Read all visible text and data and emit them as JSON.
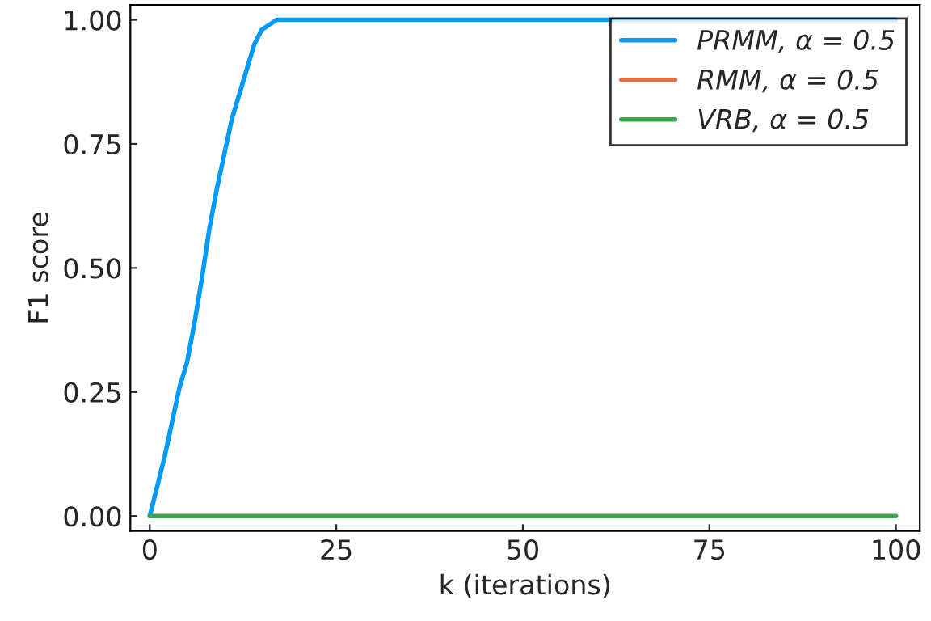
{
  "chart_data": {
    "type": "line",
    "xlabel": "k (iterations)",
    "ylabel": "F1 score",
    "x": [
      0,
      1,
      2,
      3,
      4,
      5,
      6,
      7,
      8,
      9,
      10,
      11,
      12,
      13,
      14,
      15,
      16,
      17,
      20,
      100
    ],
    "series": [
      {
        "name": "PRMM, α = 0.5",
        "color": "#009af9",
        "values": [
          0,
          0.06,
          0.12,
          0.19,
          0.26,
          0.31,
          0.39,
          0.48,
          0.58,
          0.66,
          0.73,
          0.8,
          0.85,
          0.9,
          0.95,
          0.98,
          0.99,
          1.0,
          1.0,
          1.0
        ]
      },
      {
        "name": "RMM, α = 0.5",
        "color": "#e26f46",
        "values": [
          null,
          null,
          null,
          null,
          null,
          null,
          null,
          null,
          null,
          null,
          null,
          null,
          null,
          null,
          null,
          null,
          null,
          null,
          null,
          null
        ]
      },
      {
        "name": "VRB, α = 0.5",
        "color": "#3da44d",
        "values": [
          0,
          0,
          0,
          0,
          0,
          0,
          0,
          0,
          0,
          0,
          0,
          0,
          0,
          0,
          0,
          0,
          0,
          0,
          0,
          0
        ]
      }
    ],
    "xlim": [
      -2.6,
      103.2
    ],
    "ylim": [
      -0.03,
      1.03
    ],
    "xticks": [
      0,
      25,
      50,
      75,
      100
    ],
    "yticks": [
      {
        "value": 0,
        "label": "0.00"
      },
      {
        "value": 0.25,
        "label": "0.25"
      },
      {
        "value": 0.5,
        "label": "0.50"
      },
      {
        "value": 0.75,
        "label": "0.75"
      },
      {
        "value": 1,
        "label": "1.00"
      }
    ],
    "legend": "top right",
    "grid": false
  }
}
